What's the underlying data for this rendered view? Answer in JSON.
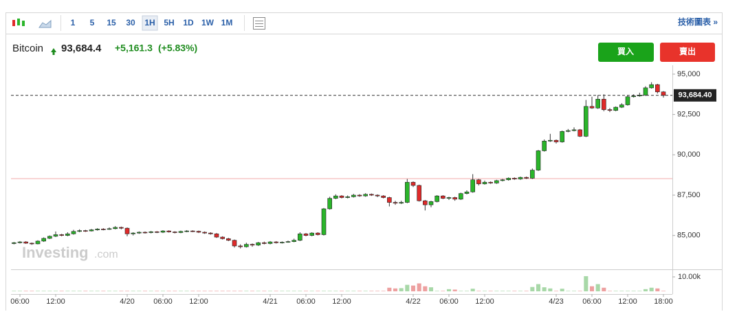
{
  "toolbar": {
    "intervals": [
      "1",
      "5",
      "15",
      "30",
      "1H",
      "5H",
      "1D",
      "1W",
      "1M"
    ],
    "selected": "1H",
    "chart_link": "技術圖表 »"
  },
  "header": {
    "name": "Bitcoin",
    "price": "93,684.4",
    "change": "+5,161.3",
    "change_pct": "(+5.83%)",
    "buy": "買入",
    "sell": "賣出"
  },
  "watermark": [
    "Investing",
    ".com"
  ],
  "chart_data": {
    "type": "candlestick",
    "up_color": "#2ab52a",
    "down_color": "#e02a2a",
    "ylim": [
      82900,
      95550
    ],
    "yticks": [
      {
        "value": 85000,
        "label": "85,000"
      },
      {
        "value": 87500,
        "label": "87,500"
      },
      {
        "value": 90000,
        "label": "90,000"
      },
      {
        "value": 92500,
        "label": "92,500"
      },
      {
        "value": 95000,
        "label": "95,000"
      }
    ],
    "xlim": [
      -0.5,
      110.5
    ],
    "xticks": [
      {
        "value": 1,
        "label": "06:00"
      },
      {
        "value": 7,
        "label": "12:00"
      },
      {
        "value": 19,
        "label": "4/20"
      },
      {
        "value": 25,
        "label": "06:00"
      },
      {
        "value": 31,
        "label": "12:00"
      },
      {
        "value": 43,
        "label": "4/21"
      },
      {
        "value": 49,
        "label": "06:00"
      },
      {
        "value": 55,
        "label": "12:00"
      },
      {
        "value": 67,
        "label": "4/22"
      },
      {
        "value": 73,
        "label": "06:00"
      },
      {
        "value": 79,
        "label": "12:00"
      },
      {
        "value": 91,
        "label": "4/23"
      },
      {
        "value": 97,
        "label": "06:00"
      },
      {
        "value": 103,
        "label": "12:00"
      },
      {
        "value": 109,
        "label": "18:00"
      }
    ],
    "last_price": {
      "value": 93684.4,
      "label": "93,684.40"
    },
    "reference_line": 88523.1,
    "open": [
      84500,
      84550,
      84600,
      84520,
      84480,
      84650,
      84820,
      84950,
      85050,
      85000,
      85100,
      85250,
      85300,
      85280,
      85350,
      85400,
      85380,
      85420,
      85500,
      85450,
      85100,
      85150,
      85200,
      85180,
      85230,
      85200,
      85280,
      85220,
      85180,
      85250,
      85280,
      85260,
      85200,
      85150,
      85100,
      84900,
      84800,
      84700,
      84350,
      84300,
      84450,
      84400,
      84550,
      84500,
      84600,
      84550,
      84580,
      84620,
      84700,
      85100,
      85000,
      85150,
      85050,
      86650,
      87300,
      87450,
      87350,
      87400,
      87500,
      87450,
      87550,
      87500,
      87450,
      87350,
      87050,
      87000,
      87050,
      88300,
      88100,
      87150,
      86900,
      87100,
      87450,
      87300,
      87350,
      87250,
      87600,
      87700,
      88450,
      88200,
      88300,
      88250,
      88400,
      88450,
      88550,
      88500,
      88600,
      88550,
      89050,
      90250,
      90850,
      90900,
      90800,
      91450,
      91500,
      91550,
      91150,
      93000,
      92900,
      93450,
      92800,
      92750,
      92950,
      93100,
      93600,
      93650,
      93700,
      94150,
      94350,
      93900
    ],
    "high": [
      84600,
      84650,
      84650,
      84560,
      84700,
      84880,
      85000,
      85250,
      85100,
      85200,
      85350,
      85380,
      85350,
      85400,
      85450,
      85450,
      85500,
      85580,
      85550,
      85500,
      85200,
      85250,
      85250,
      85280,
      85270,
      85330,
      85320,
      85260,
      85300,
      85330,
      85320,
      85300,
      85250,
      85200,
      85150,
      84950,
      84850,
      84750,
      84450,
      84550,
      84500,
      84600,
      84620,
      84650,
      84650,
      84630,
      84680,
      84800,
      85200,
      85150,
      85200,
      85200,
      86700,
      87400,
      87550,
      87500,
      87480,
      87580,
      87560,
      87620,
      87600,
      87550,
      87500,
      87400,
      87150,
      87150,
      88500,
      88350,
      88150,
      87200,
      87150,
      87500,
      87500,
      87400,
      87400,
      87650,
      87800,
      88800,
      88500,
      88400,
      88350,
      88450,
      88500,
      88600,
      88600,
      88650,
      88650,
      89150,
      90300,
      90950,
      91300,
      90950,
      91500,
      91600,
      91700,
      91600,
      93400,
      93600,
      93700,
      93750,
      92900,
      93000,
      93200,
      93700,
      93750,
      93850,
      94250,
      94500,
      94400,
      93950
    ],
    "low": [
      84450,
      84500,
      84480,
      84420,
      84450,
      84600,
      84780,
      84900,
      84950,
      84950,
      85050,
      85200,
      85220,
      85250,
      85300,
      85320,
      85350,
      85380,
      85380,
      84950,
      85000,
      85100,
      85120,
      85130,
      85150,
      85150,
      85180,
      85130,
      85140,
      85200,
      85210,
      85150,
      85100,
      85050,
      84850,
      84750,
      84650,
      84250,
      84200,
      84250,
      84300,
      84350,
      84450,
      84450,
      84500,
      84500,
      84550,
      84580,
      84650,
      84950,
      84950,
      85000,
      85000,
      86600,
      87250,
      87300,
      87300,
      87350,
      87400,
      87400,
      87450,
      87380,
      87300,
      86800,
      86900,
      86950,
      87000,
      88000,
      87100,
      86550,
      86750,
      87050,
      87250,
      87200,
      87150,
      87200,
      87550,
      87650,
      88100,
      88150,
      88200,
      88200,
      88350,
      88400,
      88450,
      88450,
      88500,
      88500,
      89000,
      90200,
      90800,
      90700,
      90750,
      91400,
      91450,
      91100,
      91100,
      92850,
      92850,
      92700,
      92650,
      92700,
      92900,
      93050,
      93550,
      93600,
      93650,
      94100,
      93800,
      93550
    ],
    "close": [
      84550,
      84600,
      84520,
      84480,
      84650,
      84820,
      84950,
      85050,
      85000,
      85100,
      85250,
      85300,
      85280,
      85350,
      85400,
      85380,
      85420,
      85500,
      85450,
      85100,
      85150,
      85200,
      85180,
      85230,
      85200,
      85280,
      85220,
      85180,
      85250,
      85280,
      85260,
      85200,
      85150,
      85100,
      84900,
      84800,
      84700,
      84350,
      84300,
      84450,
      84400,
      84550,
      84500,
      84600,
      84550,
      84580,
      84620,
      84700,
      85100,
      85000,
      85150,
      85050,
      86650,
      87300,
      87450,
      87350,
      87400,
      87500,
      87450,
      87550,
      87500,
      87450,
      87350,
      87050,
      87000,
      87050,
      88300,
      88100,
      87150,
      86900,
      87100,
      87450,
      87300,
      87350,
      87250,
      87600,
      87700,
      88450,
      88200,
      88300,
      88250,
      88400,
      88450,
      88550,
      88500,
      88600,
      88550,
      89050,
      90250,
      90850,
      90900,
      90800,
      91450,
      91500,
      91550,
      91150,
      93000,
      92900,
      93450,
      92800,
      92750,
      92950,
      93100,
      93600,
      93650,
      93700,
      94150,
      94350,
      93900,
      93684.4
    ],
    "volume": [
      300,
      300,
      300,
      300,
      300,
      300,
      300,
      300,
      300,
      300,
      300,
      300,
      300,
      300,
      300,
      300,
      300,
      300,
      300,
      300,
      300,
      300,
      300,
      300,
      300,
      300,
      300,
      300,
      300,
      300,
      300,
      300,
      300,
      300,
      300,
      300,
      300,
      300,
      300,
      300,
      300,
      300,
      300,
      300,
      300,
      300,
      300,
      300,
      300,
      300,
      300,
      300,
      300,
      300,
      300,
      300,
      300,
      300,
      300,
      300,
      300,
      300,
      300,
      2500,
      2000,
      2200,
      4500,
      4000,
      5500,
      3500,
      2800,
      300,
      300,
      1500,
      1200,
      300,
      300,
      1800,
      300,
      300,
      300,
      300,
      300,
      300,
      300,
      300,
      300,
      3000,
      5000,
      2800,
      2000,
      300,
      1800,
      300,
      300,
      300,
      10500,
      3500,
      5000,
      2500,
      300,
      300,
      300,
      300,
      300,
      300,
      1500,
      2500,
      2000,
      300
    ],
    "volume_ylim": [
      0,
      14760
    ],
    "volume_yticks": [
      {
        "value": 10000,
        "label": "10.00k"
      }
    ]
  }
}
